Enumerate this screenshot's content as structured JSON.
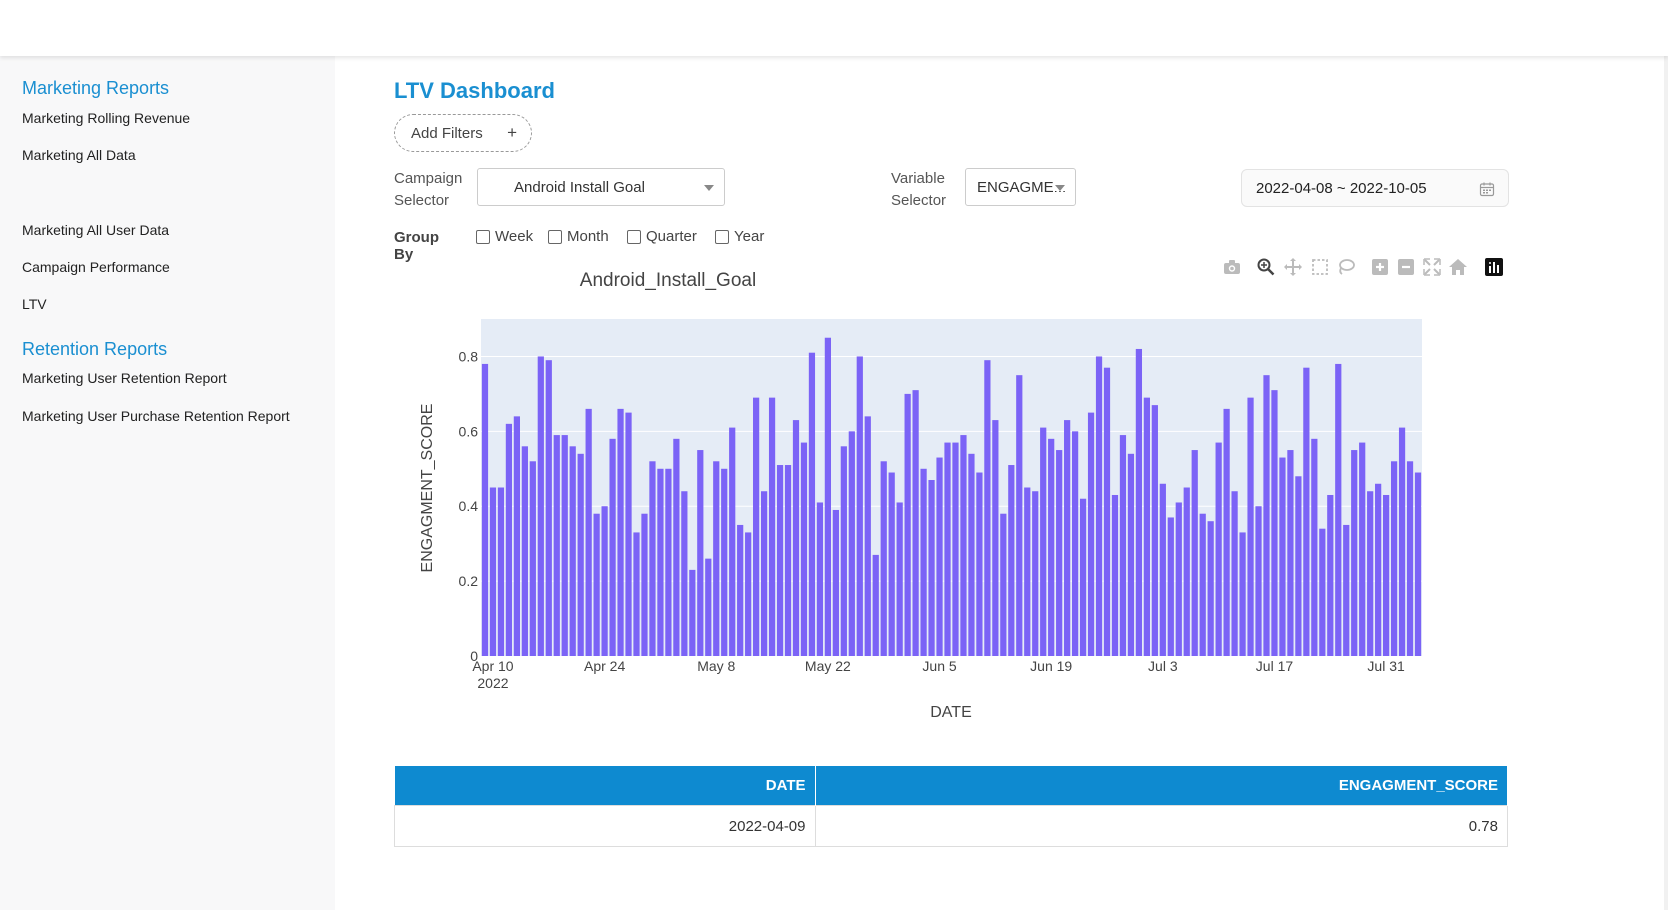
{
  "sidebar": {
    "marketing_heading": "Marketing Reports",
    "marketing_items": [
      "Marketing Rolling Revenue",
      "Marketing All Data",
      "Marketing All User Data",
      "Campaign Performance",
      "LTV"
    ],
    "retention_heading": "Retention Reports",
    "retention_items": [
      "Marketing User Retention Report",
      "Marketing User Purchase Retention Report"
    ]
  },
  "main": {
    "title": "LTV Dashboard",
    "add_filters_label": "Add Filters",
    "add_filters_icon": "+",
    "campaign_selector": {
      "label_line1": "Campaign",
      "label_line2": "Selector",
      "value": "Android Install Goal"
    },
    "variable_selector": {
      "label_line1": "Variable",
      "label_line2": "Selector",
      "value": "ENGAGME..."
    },
    "date_range": "2022-04-08 ~ 2022-10-05",
    "group_by": {
      "label": "Group By",
      "options": [
        "Week",
        "Month",
        "Quarter",
        "Year"
      ]
    }
  },
  "toolbar_icons": [
    "camera-icon",
    "zoom-icon",
    "pan-icon",
    "box-select-icon",
    "lasso-icon",
    "zoom-in-icon",
    "zoom-out-icon",
    "autoscale-icon",
    "reset-axes-icon",
    "plotly-logo-icon"
  ],
  "colors": {
    "accent": "#1a8fd1",
    "bar": "#7b63f6",
    "plot_bg": "#e5ecf6",
    "table_header": "#0e8ad0"
  },
  "chart_data": {
    "type": "bar",
    "title": "Android_Install_Goal",
    "xlabel": "DATE",
    "ylabel": "ENGAGMENT_SCORE",
    "x_start": "2022-04-09",
    "x_ticks": [
      "Apr 10",
      "Apr 24",
      "May 8",
      "May 22",
      "Jun 5",
      "Jun 19",
      "Jul 3",
      "Jul 17",
      "Jul 31"
    ],
    "x_tick_year": "2022",
    "y_ticks": [
      "0",
      "0.2",
      "0.4",
      "0.6",
      "0.8"
    ],
    "ylim": [
      0,
      0.9
    ],
    "grid": true,
    "values": [
      0.78,
      0.45,
      0.45,
      0.62,
      0.64,
      0.56,
      0.52,
      0.8,
      0.79,
      0.59,
      0.59,
      0.56,
      0.54,
      0.66,
      0.38,
      0.4,
      0.58,
      0.66,
      0.65,
      0.33,
      0.38,
      0.52,
      0.5,
      0.5,
      0.58,
      0.44,
      0.23,
      0.55,
      0.26,
      0.52,
      0.5,
      0.61,
      0.35,
      0.33,
      0.69,
      0.44,
      0.69,
      0.51,
      0.51,
      0.63,
      0.57,
      0.81,
      0.41,
      0.85,
      0.39,
      0.56,
      0.6,
      0.8,
      0.64,
      0.27,
      0.52,
      0.49,
      0.41,
      0.7,
      0.71,
      0.5,
      0.47,
      0.53,
      0.57,
      0.57,
      0.59,
      0.54,
      0.49,
      0.79,
      0.63,
      0.38,
      0.51,
      0.75,
      0.45,
      0.44,
      0.61,
      0.58,
      0.55,
      0.63,
      0.6,
      0.42,
      0.65,
      0.8,
      0.77,
      0.43,
      0.59,
      0.54,
      0.82,
      0.69,
      0.67,
      0.46,
      0.37,
      0.41,
      0.45,
      0.55,
      0.38,
      0.36,
      0.57,
      0.66,
      0.44,
      0.33,
      0.69,
      0.4,
      0.75,
      0.71,
      0.53,
      0.55,
      0.48,
      0.77,
      0.58,
      0.34,
      0.43,
      0.78,
      0.35,
      0.55,
      0.57,
      0.44,
      0.46,
      0.43,
      0.52,
      0.61,
      0.52,
      0.49
    ]
  },
  "table": {
    "headers": [
      "DATE",
      "ENGAGMENT_SCORE"
    ],
    "rows": [
      [
        "2022-04-09",
        "0.78"
      ]
    ]
  }
}
